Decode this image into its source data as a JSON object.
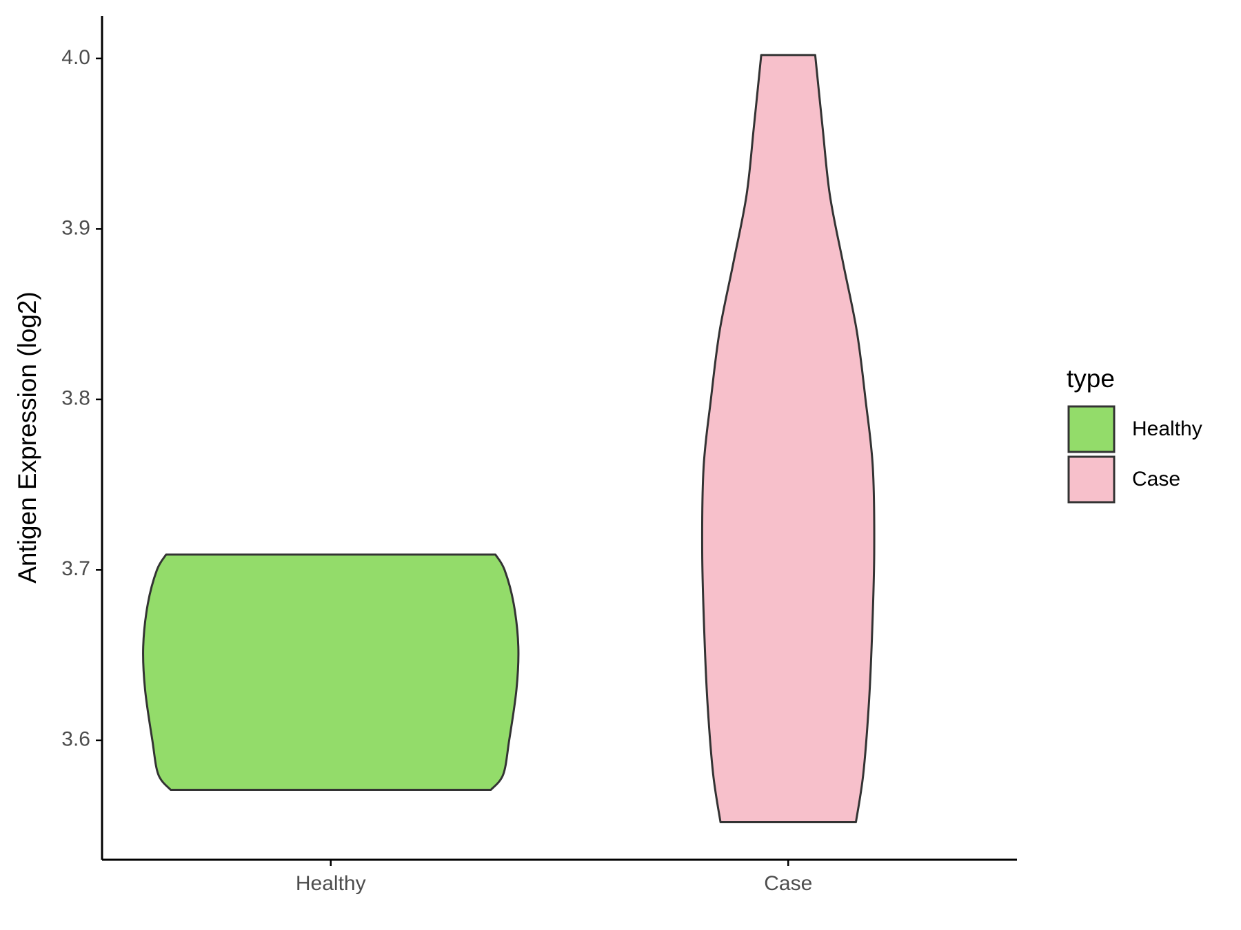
{
  "chart_data": {
    "type": "violin",
    "y_label": "Antigen Expression (log2)",
    "categories": [
      "Healthy",
      "Case"
    ],
    "legend_title": "type",
    "legend": "right",
    "ylim": [
      3.53,
      4.025
    ],
    "yticks": [
      3.6,
      3.7,
      3.8,
      3.9,
      {
        "value": 4,
        "label": "4.0"
      }
    ],
    "series": [
      {
        "name": "Healthy",
        "color": "#93dc6a",
        "y": [
          3.571,
          3.58,
          3.6,
          3.63,
          3.655,
          3.68,
          3.7,
          3.709
        ],
        "width": [
          0.35,
          0.377,
          0.39,
          0.406,
          0.41,
          0.4,
          0.38,
          0.36
        ]
      },
      {
        "name": "Case",
        "color": "#f7c0cb",
        "y": [
          3.552,
          3.58,
          3.62,
          3.66,
          3.71,
          3.76,
          3.8,
          3.84,
          3.88,
          3.92,
          3.96,
          4.002
        ],
        "width": [
          0.148,
          0.164,
          0.176,
          0.183,
          0.188,
          0.185,
          0.169,
          0.15,
          0.12,
          0.091,
          0.075,
          0.059
        ]
      }
    ]
  }
}
